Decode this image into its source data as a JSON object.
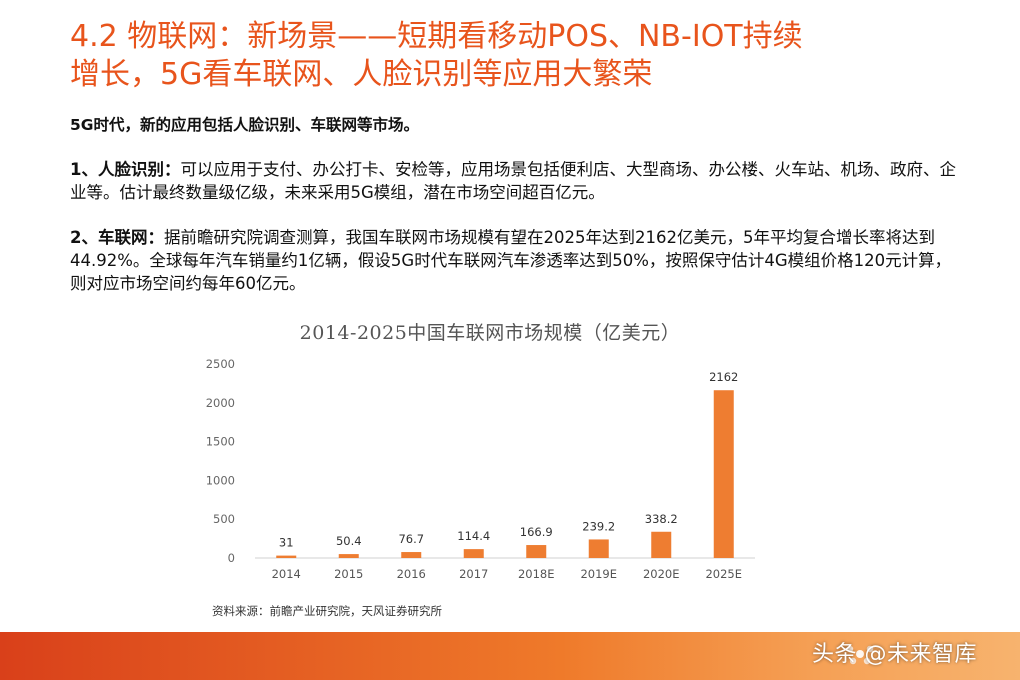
{
  "title": {
    "line1": "4.2 物联网：新场景——短期看移动POS、NB-IOT持续",
    "line2": "增长，5G看车联网、人脸识别等应用大繁荣"
  },
  "intro": "5G时代，新的应用包括人脸识别、车联网等市场。",
  "para1": {
    "lead": "1、人脸识别：",
    "text": "可以应用于支付、办公打卡、安检等，应用场景包括便利店、大型商场、办公楼、火车站、机场、政府、企业等。估计最终数量级亿级，未来采用5G模组，潜在市场空间超百亿元。"
  },
  "para2": {
    "lead": "2、车联网：",
    "text": "据前瞻研究院调查测算，我国车联网市场规模有望在2025年达到2162亿美元，5年平均复合增长率将达到44.92%。全球每年汽车销量约1亿辆，假设5G时代车联网汽车渗透率达到50%，按照保守估计4G模组价格120元计算，则对应市场空间约每年60亿元。"
  },
  "chart_data": {
    "type": "bar",
    "title": "2014-2025中国车联网市场规模（亿美元）",
    "categories": [
      "2014",
      "2015",
      "2016",
      "2017",
      "2018E",
      "2019E",
      "2020E",
      "2025E"
    ],
    "values": [
      31,
      50.4,
      76.7,
      114.4,
      166.9,
      239.2,
      338.2,
      2162
    ],
    "value_labels": [
      "31",
      "50.4",
      "76.7",
      "114.4",
      "166.9",
      "239.2",
      "338.2",
      "2162"
    ],
    "yticks": [
      "0",
      "500",
      "1000",
      "1500",
      "2000",
      "2500"
    ],
    "ylim": [
      0,
      2500
    ],
    "bar_color": "#ee7d31",
    "grid": false,
    "legend": "none"
  },
  "source": "资料来源：前瞻产业研究院，天风证券研究所",
  "footer": {
    "watermark": "头条 @未来智库",
    "band_color": "#e8541c"
  }
}
